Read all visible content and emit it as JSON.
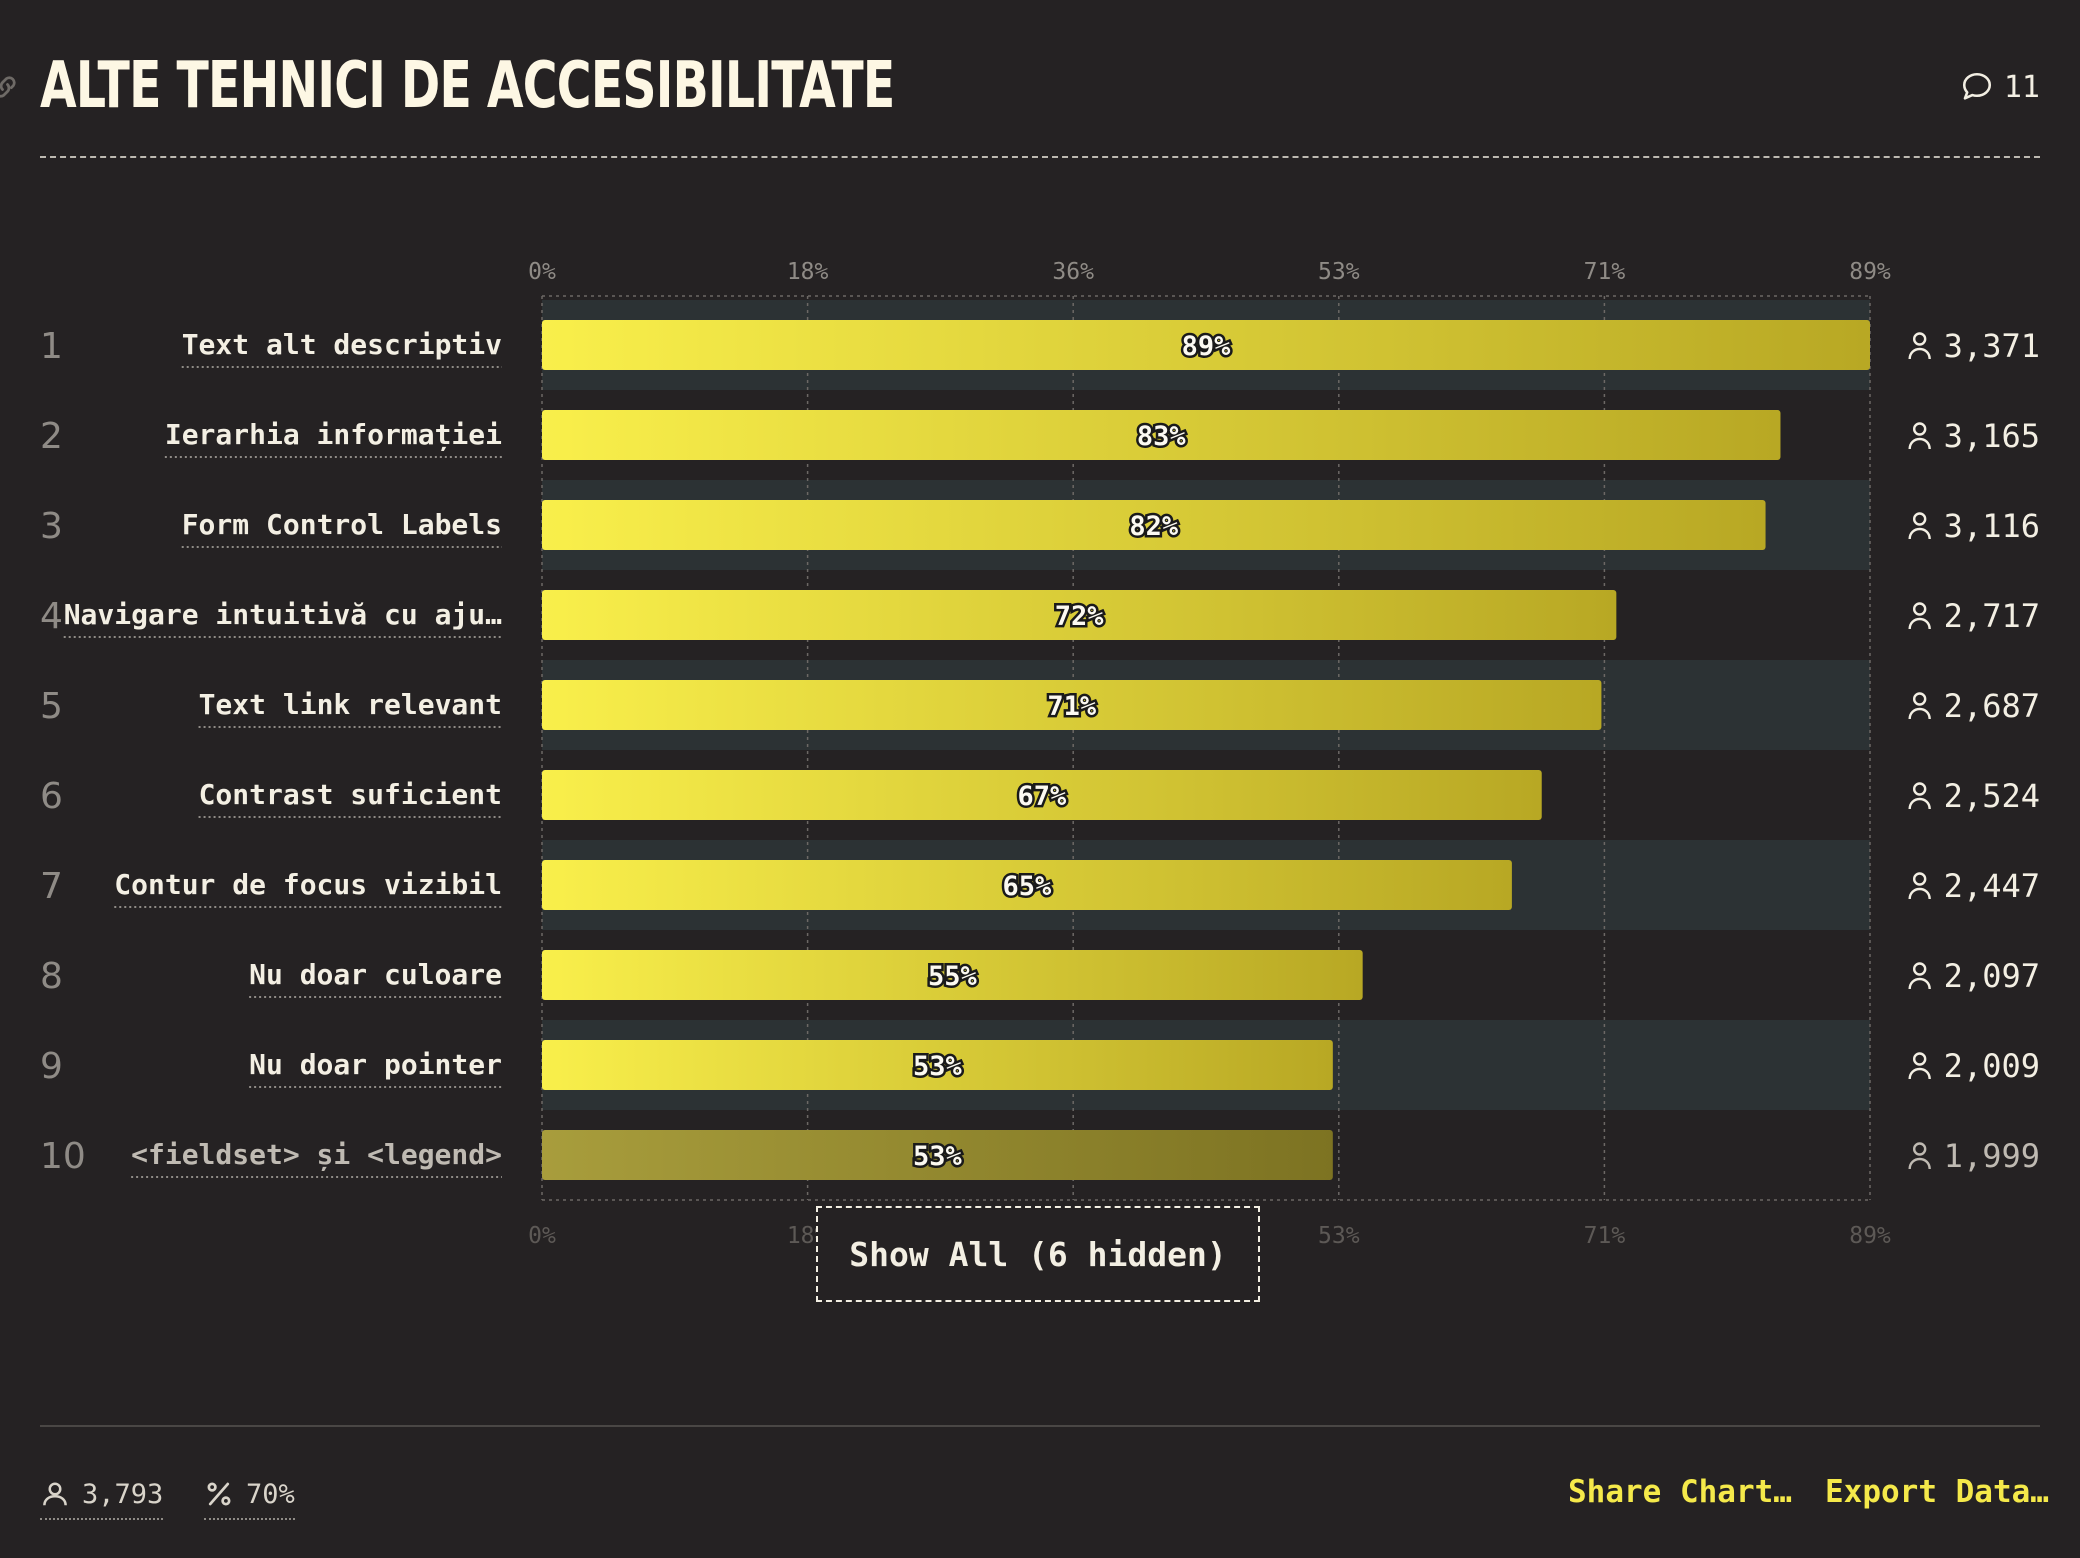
{
  "header": {
    "title": "ALTE TEHNICI DE ACCESIBILITATE",
    "comment_count": "11"
  },
  "chart_data": {
    "type": "bar",
    "orientation": "horizontal",
    "title": "ALTE TEHNICI DE ACCESIBILITATE",
    "x_ticks": [
      "0%",
      "18%",
      "36%",
      "53%",
      "71%",
      "89%"
    ],
    "xlim": [
      0,
      89
    ],
    "grid": true,
    "categories": [
      "Text alt descriptiv",
      "Ierarhia informației",
      "Form Control Labels",
      "Navigare intuitivă cu aju…",
      "Text link relevant",
      "Contrast suficient",
      "Contur de focus vizibil",
      "Nu doar culoare",
      "Nu doar pointer",
      "<fieldset> și <legend>"
    ],
    "ranks": [
      "1",
      "2",
      "3",
      "4",
      "5",
      "6",
      "7",
      "8",
      "9",
      "10"
    ],
    "values": [
      89,
      83,
      82,
      72,
      71,
      67,
      65,
      55,
      53,
      53
    ],
    "value_labels": [
      "89%",
      "83%",
      "82%",
      "72%",
      "71%",
      "67%",
      "65%",
      "55%",
      "53%",
      "53%"
    ],
    "counts": [
      "3,371",
      "3,165",
      "3,116",
      "2,717",
      "2,687",
      "2,524",
      "2,447",
      "2,097",
      "2,009",
      "1,999"
    ],
    "colors": {
      "bar_start": "#f9ef4b",
      "bar_end": "#b8a824",
      "row_band": "#2c3234",
      "background": "#252223"
    }
  },
  "show_all": {
    "label": "Show All (6 hidden)"
  },
  "footer": {
    "respondents": "3,793",
    "percent": "70%",
    "share_label": "Share Chart…",
    "export_label": "Export Data…"
  }
}
